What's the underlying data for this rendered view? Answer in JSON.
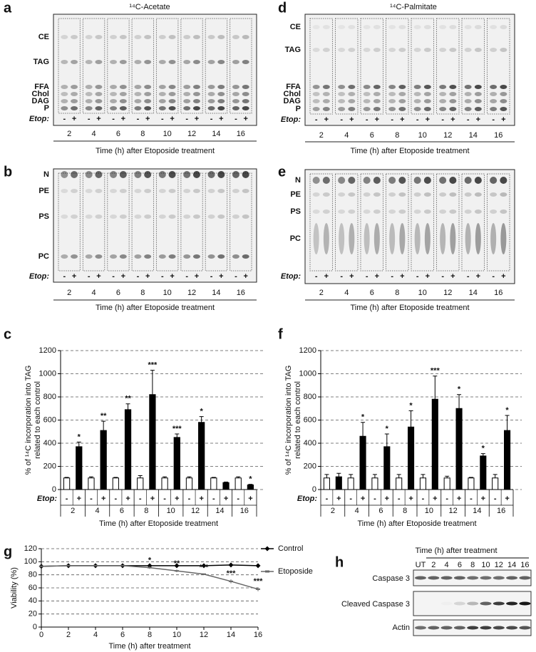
{
  "panels": {
    "a": {
      "letter": "a",
      "title": "¹⁴C-Acetate",
      "bands": [
        "CE",
        "TAG",
        "FFA",
        "Chol",
        "DAG",
        "P"
      ],
      "etop_label": "Etop:",
      "signs": [
        "-",
        "+"
      ],
      "times": [
        2,
        4,
        6,
        8,
        10,
        12,
        14,
        16
      ],
      "xlabel": "Time (h) after Etoposide treatment"
    },
    "b": {
      "letter": "b",
      "bands": [
        "N",
        "PE",
        "PS",
        "PC"
      ],
      "etop_label": "Etop:",
      "signs": [
        "-",
        "+"
      ],
      "times": [
        2,
        4,
        6,
        8,
        10,
        12,
        14,
        16
      ],
      "xlabel": "Time (h) after Etoposide treatment"
    },
    "d": {
      "letter": "d",
      "title": "¹⁴C-Palmitate",
      "bands": [
        "CE",
        "TAG",
        "FFA",
        "Chol",
        "DAG",
        "P"
      ],
      "etop_label": "Etop:",
      "signs": [
        "-",
        "+"
      ],
      "times": [
        2,
        4,
        6,
        8,
        10,
        12,
        14,
        16
      ],
      "xlabel": "Time (h) after Etoposide treatment"
    },
    "e": {
      "letter": "e",
      "bands": [
        "N",
        "PE",
        "PS",
        "PC"
      ],
      "etop_label": "Etop:",
      "signs": [
        "-",
        "+"
      ],
      "times": [
        2,
        4,
        6,
        8,
        10,
        12,
        14,
        16
      ],
      "xlabel": "Time (h) after Etoposide treatment"
    }
  },
  "chart_data": [
    {
      "type": "bar",
      "letter": "c",
      "categories": [
        2,
        4,
        6,
        8,
        10,
        12,
        14,
        16
      ],
      "series": [
        {
          "name": "-",
          "color": "#ffffff",
          "values": [
            100,
            100,
            100,
            100,
            100,
            100,
            100,
            100
          ],
          "errors": [
            5,
            10,
            5,
            20,
            10,
            10,
            5,
            10
          ],
          "significance": [
            null,
            null,
            null,
            null,
            null,
            null,
            null,
            null
          ]
        },
        {
          "name": "+",
          "color": "#000000",
          "values": [
            370,
            510,
            690,
            820,
            450,
            580,
            60,
            40
          ],
          "errors": [
            40,
            80,
            50,
            210,
            30,
            50,
            5,
            5
          ],
          "significance": [
            "*",
            "**",
            "**",
            "***",
            "***",
            "*",
            null,
            "*"
          ]
        }
      ],
      "ylim": [
        0,
        1200
      ],
      "yticks": [
        0,
        200,
        400,
        600,
        800,
        1000,
        1200
      ],
      "grid": true,
      "ylabel": [
        "% of ¹⁴C incorporation into TAG",
        "related to each control"
      ],
      "row_label": "Etop:",
      "xlabel": "Time (h) after Etoposide treatment"
    },
    {
      "type": "bar",
      "letter": "f",
      "categories": [
        2,
        4,
        6,
        8,
        10,
        12,
        14,
        16
      ],
      "series": [
        {
          "name": "-",
          "color": "#ffffff",
          "values": [
            100,
            100,
            100,
            100,
            100,
            100,
            100,
            100
          ],
          "errors": [
            30,
            30,
            30,
            30,
            30,
            15,
            5,
            30
          ],
          "significance": [
            null,
            null,
            null,
            null,
            null,
            null,
            null,
            null
          ]
        },
        {
          "name": "+",
          "color": "#000000",
          "values": [
            110,
            460,
            370,
            540,
            780,
            700,
            290,
            510
          ],
          "errors": [
            30,
            120,
            110,
            140,
            200,
            120,
            20,
            130
          ],
          "significance": [
            null,
            "*",
            "*",
            "*",
            "***",
            "*",
            "*",
            "*"
          ]
        }
      ],
      "ylim": [
        0,
        1200
      ],
      "yticks": [
        0,
        200,
        400,
        600,
        800,
        1000,
        1200
      ],
      "grid": true,
      "ylabel": [
        "% of ¹⁴C incorporation into TAG",
        "related to each control"
      ],
      "row_label": "Etop:",
      "xlabel": "Time (h) after Etoposide treatment"
    },
    {
      "type": "line",
      "letter": "g",
      "x": [
        0,
        2,
        4,
        6,
        8,
        10,
        12,
        14,
        16
      ],
      "series": [
        {
          "name": "Control",
          "color": "#000000",
          "values": [
            93,
            94,
            94,
            94,
            94,
            94,
            94,
            95,
            94
          ]
        },
        {
          "name": "Etoposide",
          "color": "#666666",
          "values": [
            93,
            94,
            94,
            94,
            91,
            86,
            81,
            70,
            58
          ],
          "errors": [
            1,
            1,
            1,
            1,
            2,
            2,
            1,
            3,
            3
          ],
          "significance": [
            null,
            null,
            null,
            null,
            "*",
            "**",
            "***",
            "***",
            "***"
          ]
        }
      ],
      "xlim": [
        0,
        16
      ],
      "xticks": [
        0,
        2,
        4,
        6,
        8,
        10,
        12,
        14,
        16
      ],
      "ylim": [
        0,
        120
      ],
      "yticks": [
        0,
        20,
        40,
        60,
        80,
        100,
        120
      ],
      "grid": true,
      "ylabel": "Viability (%)",
      "xlabel": "Time (h) after treatment"
    }
  ],
  "blot": {
    "letter": "h",
    "title": "Time (h) after treatment",
    "lanes": [
      "UT",
      "2",
      "4",
      "6",
      "8",
      "10",
      "12",
      "14",
      "16"
    ],
    "rows": [
      "Caspase 3",
      "Cleaved Caspase 3",
      "Actin"
    ]
  }
}
